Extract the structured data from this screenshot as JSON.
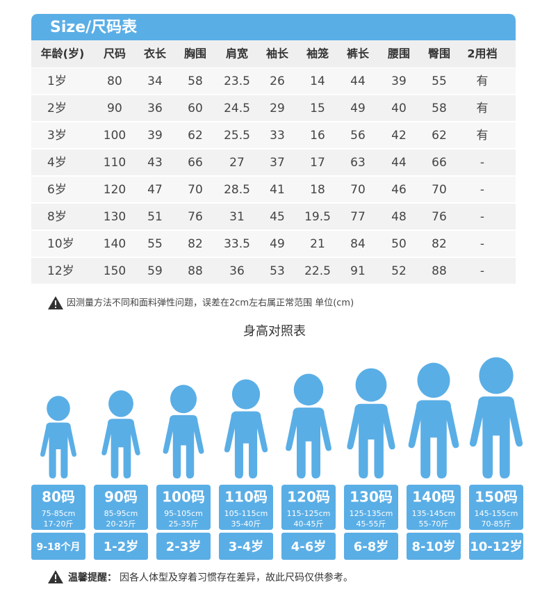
{
  "header": {
    "title": "Size/尺码表"
  },
  "table": {
    "columns": [
      "年龄(岁)",
      "尺码",
      "衣长",
      "胸围",
      "肩宽",
      "袖长",
      "袖笼",
      "裤长",
      "腰围",
      "臀围",
      "2用裆"
    ],
    "rows": [
      [
        "1岁",
        "80",
        "34",
        "58",
        "23.5",
        "26",
        "14",
        "44",
        "39",
        "55",
        "有"
      ],
      [
        "2岁",
        "90",
        "36",
        "60",
        "24.5",
        "29",
        "15",
        "49",
        "40",
        "58",
        "有"
      ],
      [
        "3岁",
        "100",
        "39",
        "62",
        "25.5",
        "33",
        "16",
        "56",
        "42",
        "62",
        "有"
      ],
      [
        "4岁",
        "110",
        "43",
        "66",
        "27",
        "37",
        "17",
        "63",
        "44",
        "66",
        "-"
      ],
      [
        "6岁",
        "120",
        "47",
        "70",
        "28.5",
        "41",
        "18",
        "70",
        "46",
        "70",
        "-"
      ],
      [
        "8岁",
        "130",
        "51",
        "76",
        "31",
        "45",
        "19.5",
        "77",
        "48",
        "76",
        "-"
      ],
      [
        "10岁",
        "140",
        "55",
        "82",
        "33.5",
        "49",
        "21",
        "84",
        "50",
        "82",
        "-"
      ],
      [
        "12岁",
        "150",
        "59",
        "88",
        "36",
        "53",
        "22.5",
        "91",
        "52",
        "88",
        "-"
      ]
    ]
  },
  "note": "因测量方法不同和面料弹性问题，误差在2cm左右属正常范围 单位(cm)",
  "height_chart": {
    "title": "身高对照表",
    "figures": [
      {
        "size": "80码",
        "height": "75-85cm",
        "weight": "17-20斤",
        "age": "9-18个月"
      },
      {
        "size": "90码",
        "height": "85-95cm",
        "weight": "20-25斤",
        "age": "1-2岁"
      },
      {
        "size": "100码",
        "height": "95-105cm",
        "weight": "25-35斤",
        "age": "2-3岁"
      },
      {
        "size": "110码",
        "height": "105-115cm",
        "weight": "35-40斤",
        "age": "3-4岁"
      },
      {
        "size": "120码",
        "height": "115-125cm",
        "weight": "40-45斤",
        "age": "4-6岁"
      },
      {
        "size": "130码",
        "height": "125-135cm",
        "weight": "45-55斤",
        "age": "6-8岁"
      },
      {
        "size": "140码",
        "height": "135-145cm",
        "weight": "55-70斤",
        "age": "8-10岁"
      },
      {
        "size": "150码",
        "height": "145-155cm",
        "weight": "70-85斤",
        "age": "10-12岁"
      }
    ]
  },
  "footer": {
    "label": "温馨提醒：",
    "text": "因各人体型及穿着习惯存在差异，故此尺码仅供参考。"
  }
}
